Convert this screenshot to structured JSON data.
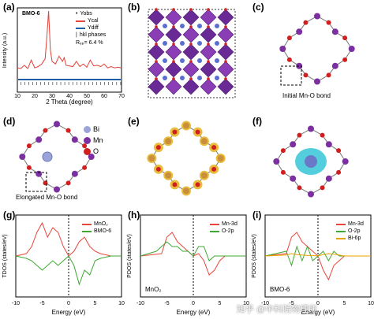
{
  "figure": {
    "panels": {
      "a": {
        "label": "(a)",
        "sample": "BMO-6",
        "legend": [
          "Yobs",
          "Ycal",
          "Ydiff",
          "hkl phases"
        ],
        "rwp_text": "Rₑₚ= 6.4 %",
        "xlabel": "2 Theta (degree)",
        "ylabel": "Intensity (a.u.)",
        "xticks": [
          "10",
          "20",
          "30",
          "40",
          "50",
          "60",
          "70"
        ]
      },
      "b": {
        "label": "(b)"
      },
      "c": {
        "label": "(c)",
        "annotation": "Initial Mn-O bond"
      },
      "d": {
        "label": "(d)",
        "annotation": "Elongated Mn-O bond",
        "legend": [
          "Bi",
          "Mn",
          "O"
        ]
      },
      "e": {
        "label": "(e)"
      },
      "f": {
        "label": "(f)"
      },
      "g": {
        "label": "(g)",
        "legend": [
          "MnO₂",
          "BMO-6"
        ],
        "ylabel": "TDOS (states/eV)",
        "xlabel": "Energy (eV)",
        "xticks": [
          "-10",
          "-5",
          "0",
          "5",
          "10"
        ]
      },
      "h": {
        "label": "(h)",
        "legend": [
          "Mn-3d",
          "O-2p"
        ],
        "material": "MnO₂",
        "ylabel": "PDOS (states/eV)",
        "xlabel": "Energy (eV)",
        "xticks": [
          "-10",
          "-5",
          "0",
          "5",
          "10"
        ]
      },
      "i": {
        "label": "(i)",
        "legend": [
          "Mn-3d",
          "O-2p",
          "Bi-6p"
        ],
        "material": "BMO-6",
        "ylabel": "PDOS (states/eV)",
        "xlabel": "Energy (eV)",
        "xticks": [
          "-10",
          "-5",
          "0",
          "5",
          "10"
        ]
      }
    },
    "watermark": "知乎 @中科院物理所"
  },
  "colors": {
    "red": "#e8453c",
    "green": "#3ea832",
    "blue": "#1f5fa8",
    "purple": "#7b2fa0",
    "gold": "#d9a520",
    "orange": "#e8a000",
    "bi": "#9aa4d8",
    "o": "#d11f1f"
  },
  "chart_data": [
    {
      "type": "line",
      "panel": "a",
      "title": "",
      "xlabel": "2 Theta (degree)",
      "ylabel": "Intensity (a.u.)",
      "xlim": [
        10,
        70
      ],
      "series": [
        {
          "name": "Yobs",
          "x": [
            10,
            12,
            14,
            16,
            18,
            20,
            22,
            24,
            26,
            27,
            28,
            29,
            30,
            32,
            34,
            36,
            37,
            38,
            40,
            42,
            44,
            46,
            48,
            50,
            52,
            54,
            56,
            58,
            60,
            62,
            64,
            66,
            68,
            70
          ],
          "values": [
            12,
            11,
            16,
            11,
            24,
            12,
            14,
            18,
            26,
            60,
            100,
            40,
            22,
            18,
            30,
            22,
            28,
            16,
            15,
            14,
            22,
            14,
            18,
            13,
            24,
            15,
            16,
            14,
            18,
            12,
            14,
            12,
            13,
            12
          ]
        },
        {
          "name": "Ycal",
          "x": [
            10,
            12,
            14,
            16,
            18,
            20,
            22,
            24,
            26,
            27,
            28,
            29,
            30,
            32,
            34,
            36,
            37,
            38,
            40,
            42,
            44,
            46,
            48,
            50,
            52,
            54,
            56,
            58,
            60,
            62,
            64,
            66,
            68,
            70
          ],
          "values": [
            12,
            11,
            16,
            11,
            24,
            12,
            14,
            18,
            26,
            60,
            100,
            40,
            22,
            18,
            30,
            22,
            28,
            16,
            15,
            14,
            22,
            14,
            18,
            13,
            24,
            15,
            16,
            14,
            18,
            12,
            14,
            12,
            13,
            12
          ]
        },
        {
          "name": "Ydiff",
          "x": [
            10,
            20,
            30,
            40,
            50,
            60,
            70
          ],
          "values": [
            0,
            0,
            0,
            0,
            0,
            0,
            0
          ]
        }
      ]
    },
    {
      "type": "line",
      "panel": "g",
      "xlabel": "Energy (eV)",
      "ylabel": "TDOS (states/eV)",
      "xlim": [
        -10,
        10
      ],
      "series": [
        {
          "name": "MnO₂",
          "x": [
            -10,
            -8,
            -7,
            -6,
            -5,
            -4,
            -3,
            -2,
            -1,
            0,
            1,
            2,
            3,
            4,
            5,
            6,
            8,
            10
          ],
          "values": [
            0,
            0.5,
            2,
            5,
            7,
            4,
            6,
            5,
            2,
            0,
            1,
            3,
            4,
            2,
            1,
            0.5,
            0,
            0
          ]
        },
        {
          "name": "BMO-6",
          "x": [
            -10,
            -8,
            -7,
            -6,
            -5,
            -4,
            -3,
            -2,
            -1,
            0,
            1,
            2,
            3,
            4,
            5,
            6,
            8,
            10
          ],
          "values": [
            0,
            -0.5,
            -1,
            -2,
            -3,
            -2,
            -1,
            -2,
            -1,
            0,
            -2,
            -6,
            -3,
            -4,
            -1,
            -0.5,
            0,
            0
          ]
        }
      ]
    },
    {
      "type": "line",
      "panel": "h",
      "xlabel": "Energy (eV)",
      "ylabel": "PDOS (states/eV)",
      "xlim": [
        -10,
        10
      ],
      "series": [
        {
          "name": "Mn-3d",
          "x": [
            -10,
            -6,
            -5,
            -4,
            -3,
            -2,
            -1,
            0,
            1,
            2,
            3,
            4,
            5,
            6,
            10
          ],
          "values": [
            0,
            0.5,
            4,
            5,
            3,
            2,
            1,
            0,
            0.5,
            -1,
            -4,
            -3,
            -1,
            0,
            0
          ]
        },
        {
          "name": "O-2p",
          "x": [
            -10,
            -7,
            -6,
            -5,
            -4,
            -3,
            -2,
            -1,
            0,
            1,
            2,
            3,
            4,
            5,
            10
          ],
          "values": [
            0,
            1,
            2,
            3,
            2,
            2,
            1,
            1,
            0,
            2,
            2,
            -1,
            0,
            0,
            0
          ]
        }
      ]
    },
    {
      "type": "line",
      "panel": "i",
      "xlabel": "Energy (eV)",
      "ylabel": "PDOS (states/eV)",
      "xlim": [
        -10,
        10
      ],
      "series": [
        {
          "name": "Mn-3d",
          "x": [
            -10,
            -6,
            -5,
            -4,
            -3,
            -2,
            -1,
            0,
            1,
            2,
            3,
            4,
            5,
            10
          ],
          "values": [
            0,
            0.5,
            4,
            5,
            3,
            2,
            1,
            0,
            -3,
            -5,
            -2,
            -1,
            0,
            0
          ]
        },
        {
          "name": "O-2p",
          "x": [
            -10,
            -6,
            -5,
            -4,
            -3,
            -2,
            -1,
            0,
            1,
            2,
            3,
            4,
            5,
            10
          ],
          "values": [
            0,
            1,
            -2,
            2,
            -1,
            2,
            -1,
            0,
            1,
            -1,
            1,
            0,
            0,
            0
          ]
        },
        {
          "name": "Bi-6p",
          "x": [
            -10,
            -6,
            -5,
            -4,
            -3,
            -2,
            -1,
            0,
            1,
            2,
            3,
            4,
            5,
            10
          ],
          "values": [
            0,
            0.2,
            0.5,
            0.3,
            0.2,
            0.1,
            0.1,
            0,
            0.3,
            0.5,
            0.4,
            0.2,
            0,
            0
          ]
        }
      ]
    }
  ]
}
